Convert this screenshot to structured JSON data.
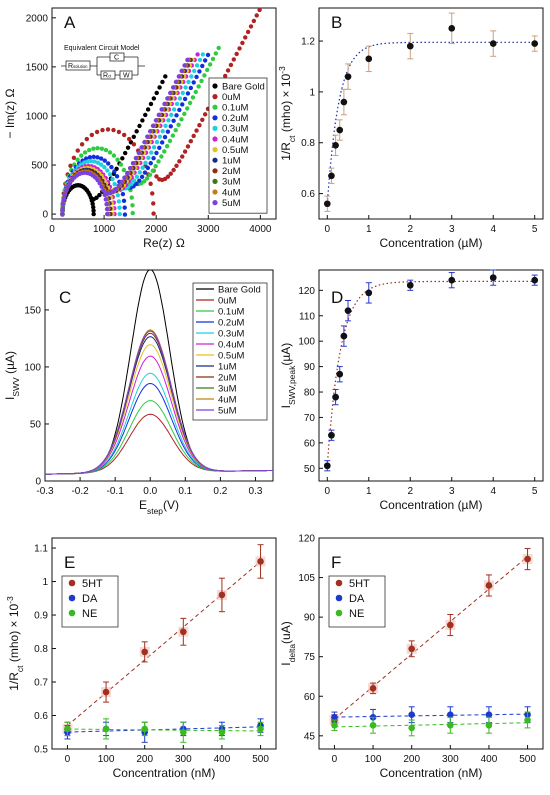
{
  "figure_panels": [
    "A",
    "B",
    "C",
    "D",
    "E",
    "F"
  ],
  "inset": {
    "title": "Equivalent Circuit Model",
    "elements": [
      "R",
      "C",
      "R",
      "W"
    ],
    "subscripts": [
      "solution",
      "",
      "ct",
      ""
    ]
  },
  "colors": {
    "bare_gold": "#000000",
    "0uM": "#b22222",
    "0.1uM": "#2ecc40",
    "0.2uM": "#1030e0",
    "0.3uM": "#20d0e0",
    "0.4uM": "#d020d0",
    "0.5uM": "#e8c020",
    "1uM": "#1a2a8a",
    "2uM": "#8b3010",
    "3uM": "#3a7a10",
    "4uM": "#c08010",
    "5uM": "#7a40e0",
    "5HT": "#a03020",
    "DA": "#1a3ad0",
    "NE": "#3aba20",
    "fit": "#a03020",
    "fitD": "#a03020"
  },
  "chart_data": [
    {
      "panel": "A",
      "type": "scatter",
      "xlabel": "Re(z) Ω",
      "ylabel": "− Im(z) Ω",
      "xlim": [
        0,
        4300
      ],
      "ylim": [
        -50,
        2100
      ],
      "xticks": [
        0,
        1000,
        2000,
        3000,
        4000
      ],
      "yticks": [
        0,
        500,
        1000,
        1500,
        2000
      ],
      "legend_position": "right",
      "series": [
        {
          "name": "Bare Gold",
          "color": "#000000",
          "r0": 200,
          "d": 600,
          "shift": 0,
          "xmax": 2200
        },
        {
          "name": "0uM",
          "color": "#b22222",
          "r0": 200,
          "d": 1750,
          "shift": 5,
          "xmax": 4050
        },
        {
          "name": "0.1uM",
          "color": "#2ecc40",
          "r0": 200,
          "d": 1350,
          "shift": 10,
          "xmax": 3250
        },
        {
          "name": "0.2uM",
          "color": "#1030e0",
          "r0": 200,
          "d": 1200,
          "shift": -5,
          "xmax": 3000
        },
        {
          "name": "0.3uM",
          "color": "#20d0e0",
          "r0": 200,
          "d": 1100,
          "shift": 0,
          "xmax": 2900
        },
        {
          "name": "0.4uM",
          "color": "#d020d0",
          "r0": 200,
          "d": 1000,
          "shift": 0,
          "xmax": 2800
        },
        {
          "name": "0.5uM",
          "color": "#e8c020",
          "r0": 200,
          "d": 960,
          "shift": 0,
          "xmax": 2750
        },
        {
          "name": "1uM",
          "color": "#1a2a8a",
          "r0": 200,
          "d": 920,
          "shift": 0,
          "xmax": 2700
        },
        {
          "name": "2uM",
          "color": "#8b3010",
          "r0": 200,
          "d": 900,
          "shift": 0,
          "xmax": 2650
        },
        {
          "name": "3uM",
          "color": "#3a7a10",
          "r0": 200,
          "d": 870,
          "shift": 0,
          "xmax": 2620
        },
        {
          "name": "4uM",
          "color": "#c08010",
          "r0": 200,
          "d": 880,
          "shift": 0,
          "xmax": 2640
        },
        {
          "name": "5uM",
          "color": "#7a40e0",
          "r0": 200,
          "d": 860,
          "shift": 0,
          "xmax": 2600
        }
      ]
    },
    {
      "panel": "B",
      "type": "scatter",
      "xlabel": "Concentration (µM)",
      "ylabel": "1/R",
      "ylabel_sub": "ct",
      "ylabel_rest": " (mho) × 10",
      "ylabel_sup": "-3",
      "xlim": [
        -0.2,
        5.2
      ],
      "ylim": [
        0.5,
        1.33
      ],
      "xticks": [
        0,
        1,
        2,
        3,
        4,
        5
      ],
      "yticks": [
        0.6,
        0.8,
        1.0,
        1.2
      ],
      "fit_color": "#1a2aaa",
      "x": [
        0,
        0.1,
        0.2,
        0.3,
        0.4,
        0.5,
        1,
        2,
        3,
        4,
        5
      ],
      "y": [
        0.56,
        0.67,
        0.79,
        0.85,
        0.96,
        1.06,
        1.13,
        1.18,
        1.25,
        1.19,
        1.19
      ],
      "err": [
        0.03,
        0.03,
        0.04,
        0.04,
        0.05,
        0.05,
        0.05,
        0.05,
        0.06,
        0.05,
        0.03
      ]
    },
    {
      "panel": "C",
      "type": "line",
      "xlabel": "E",
      "xlabel_sub": "step",
      "xlabel_rest": "(V)",
      "ylabel": "I",
      "ylabel_sub": "SWV",
      "ylabel_rest": " (µA)",
      "xlim": [
        -0.3,
        0.35
      ],
      "ylim": [
        0,
        185
      ],
      "xticks": [
        -0.3,
        -0.2,
        -0.1,
        0.0,
        0.1,
        0.2,
        0.3
      ],
      "yticks": [
        0,
        50,
        100,
        150
      ],
      "legend_position": "top-right",
      "series": [
        {
          "name": "Bare Gold",
          "color": "#000000",
          "peak": 178,
          "sigma": 0.055
        },
        {
          "name": "0uM",
          "color": "#b22222",
          "peak": 51,
          "sigma": 0.06
        },
        {
          "name": "0.1uM",
          "color": "#2ecc40",
          "peak": 63,
          "sigma": 0.06
        },
        {
          "name": "0.2uM",
          "color": "#1030e0",
          "peak": 78,
          "sigma": 0.06
        },
        {
          "name": "0.3uM",
          "color": "#20d0e0",
          "peak": 87,
          "sigma": 0.06
        },
        {
          "name": "0.4uM",
          "color": "#d020d0",
          "peak": 102,
          "sigma": 0.06
        },
        {
          "name": "0.5uM",
          "color": "#e8c020",
          "peak": 112,
          "sigma": 0.06
        },
        {
          "name": "1uM",
          "color": "#1a2a8a",
          "peak": 119,
          "sigma": 0.06
        },
        {
          "name": "2uM",
          "color": "#8b3010",
          "peak": 122,
          "sigma": 0.06
        },
        {
          "name": "3uM",
          "color": "#3a7a10",
          "peak": 124,
          "sigma": 0.06
        },
        {
          "name": "4uM",
          "color": "#c08010",
          "peak": 125,
          "sigma": 0.06
        },
        {
          "name": "5uM",
          "color": "#7a40e0",
          "peak": 124,
          "sigma": 0.06
        }
      ]
    },
    {
      "panel": "D",
      "type": "scatter",
      "xlabel": "Concentration (µM)",
      "ylabel": "I",
      "ylabel_sub": "SWV,peak",
      "ylabel_rest": "(µA)",
      "xlim": [
        -0.2,
        5.2
      ],
      "ylim": [
        45,
        128
      ],
      "xticks": [
        0,
        1,
        2,
        3,
        4,
        5
      ],
      "yticks": [
        50,
        60,
        70,
        80,
        90,
        100,
        110,
        120
      ],
      "fit_color": "#a03020",
      "x": [
        0,
        0.1,
        0.2,
        0.3,
        0.4,
        0.5,
        1,
        2,
        3,
        4,
        5
      ],
      "y": [
        51,
        63,
        78,
        87,
        102,
        112,
        119,
        122,
        124,
        125,
        124
      ],
      "err": [
        2,
        2,
        3,
        3,
        4,
        4,
        4,
        2,
        3,
        3,
        2
      ]
    },
    {
      "panel": "E",
      "type": "scatter",
      "xlabel": "Concentration (nM)",
      "ylabel": "1/R",
      "ylabel_sub": "ct",
      "ylabel_rest": " (mho) × 10",
      "ylabel_sup": "-3",
      "xlim": [
        -40,
        540
      ],
      "ylim": [
        0.5,
        1.13
      ],
      "xticks": [
        0,
        100,
        200,
        300,
        400,
        500
      ],
      "yticks": [
        0.5,
        0.6,
        0.7,
        0.8,
        0.9,
        1.0,
        1.1
      ],
      "legend_position": "top-left",
      "series": [
        {
          "name": "5HT",
          "color": "#a03020",
          "x": [
            0,
            100,
            200,
            300,
            400,
            500
          ],
          "y": [
            0.56,
            0.67,
            0.79,
            0.85,
            0.96,
            1.06
          ],
          "err": [
            0.02,
            0.03,
            0.03,
            0.04,
            0.05,
            0.05
          ]
        },
        {
          "name": "DA",
          "color": "#1a3ad0",
          "x": [
            0,
            100,
            200,
            300,
            400,
            500
          ],
          "y": [
            0.55,
            0.56,
            0.55,
            0.56,
            0.56,
            0.57
          ],
          "err": [
            0.02,
            0.02,
            0.03,
            0.02,
            0.02,
            0.02
          ]
        },
        {
          "name": "NE",
          "color": "#3aba20",
          "x": [
            0,
            100,
            200,
            300,
            400,
            500
          ],
          "y": [
            0.56,
            0.56,
            0.56,
            0.55,
            0.55,
            0.56
          ],
          "err": [
            0.02,
            0.03,
            0.02,
            0.03,
            0.02,
            0.02
          ]
        }
      ]
    },
    {
      "panel": "F",
      "type": "scatter",
      "xlabel": "Concentration (nM)",
      "ylabel": "I",
      "ylabel_sub": "delta",
      "ylabel_rest": "(uA)",
      "xlim": [
        -40,
        540
      ],
      "ylim": [
        40,
        120
      ],
      "xticks": [
        0,
        100,
        200,
        300,
        400,
        500
      ],
      "yticks": [
        45,
        60,
        75,
        90,
        105,
        120
      ],
      "legend_position": "top-left",
      "series": [
        {
          "name": "5HT",
          "color": "#a03020",
          "x": [
            0,
            100,
            200,
            300,
            400,
            500
          ],
          "y": [
            51,
            63,
            78,
            87,
            102,
            112
          ],
          "err": [
            2,
            2,
            3,
            4,
            4,
            4
          ]
        },
        {
          "name": "DA",
          "color": "#1a3ad0",
          "x": [
            0,
            100,
            200,
            300,
            400,
            500
          ],
          "y": [
            52,
            52,
            53,
            53,
            53,
            53
          ],
          "err": [
            2,
            3,
            3,
            3,
            3,
            3
          ]
        },
        {
          "name": "NE",
          "color": "#3aba20",
          "x": [
            0,
            100,
            200,
            300,
            400,
            500
          ],
          "y": [
            49,
            49,
            48,
            49,
            49,
            51
          ],
          "err": [
            2,
            3,
            3,
            3,
            3,
            3
          ]
        }
      ]
    }
  ]
}
